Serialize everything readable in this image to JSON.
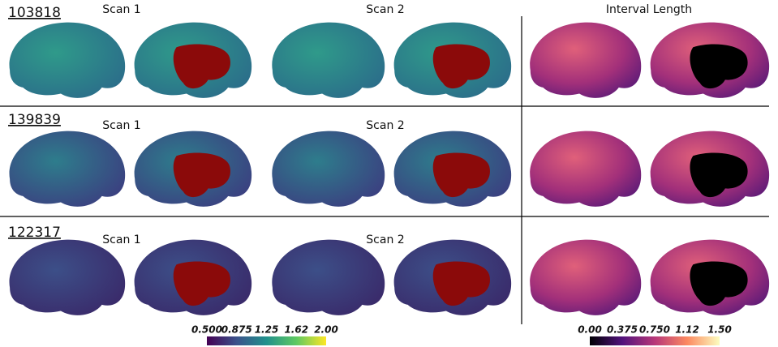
{
  "rows": [
    {
      "subject": "103818",
      "scan_labels": [
        "Scan 1",
        "Scan 2"
      ]
    },
    {
      "subject": "139839",
      "scan_labels": [
        "Scan 1",
        "Scan 2"
      ]
    },
    {
      "subject": "122317",
      "scan_labels": [
        "Scan 1",
        "Scan 2"
      ]
    }
  ],
  "interval_title": "Interval Length",
  "colorbars": [
    {
      "ticks": [
        "0.500",
        "0.875",
        "1.25",
        "1.62",
        "2.00"
      ]
    },
    {
      "ticks": [
        "0.00",
        "0.375",
        "0.750",
        "1.12",
        "1.50"
      ]
    }
  ]
}
